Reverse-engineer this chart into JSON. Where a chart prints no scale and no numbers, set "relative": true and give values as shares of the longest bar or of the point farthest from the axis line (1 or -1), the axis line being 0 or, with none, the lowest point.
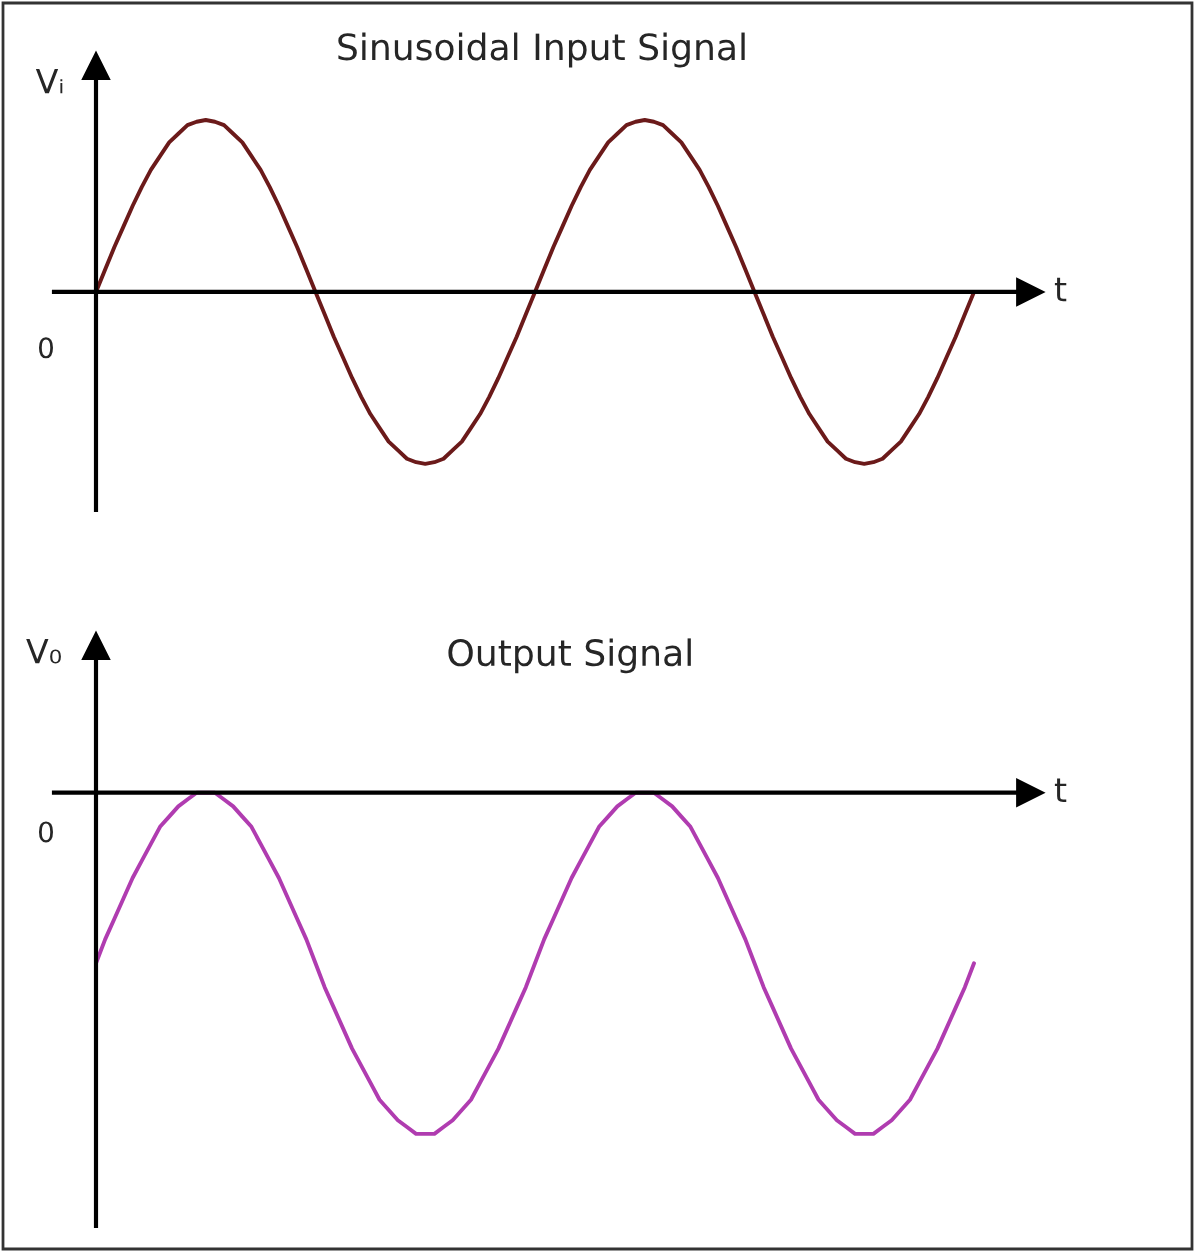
{
  "chart_data": [
    {
      "type": "line",
      "title": "Sinusoidal Input Signal",
      "xlabel": "t",
      "ylabel": "Vᵢ",
      "relative": true,
      "annotations": [
        "0"
      ],
      "categories": [
        null,
        null,
        null,
        null,
        null,
        null,
        null,
        null,
        null,
        null,
        null,
        null,
        null,
        null,
        null,
        null,
        null,
        null,
        null,
        null,
        null,
        null,
        null,
        null,
        null,
        null,
        null,
        null,
        null,
        null,
        null,
        null,
        null,
        null,
        null,
        null,
        null,
        null,
        null,
        null,
        null,
        null,
        null,
        null,
        null,
        null,
        null,
        null,
        null,
        null,
        null,
        null,
        null,
        null,
        null,
        null,
        null,
        null,
        null,
        null,
        null,
        null,
        null,
        null,
        null,
        null,
        null,
        null,
        null,
        null,
        null,
        null,
        null,
        null,
        null,
        null,
        null,
        null,
        null,
        null,
        null,
        null,
        null,
        null,
        null,
        null,
        null,
        null,
        null,
        null,
        null,
        null,
        null,
        null,
        null,
        null,
        null
      ],
      "series": [
        {
          "color": "#6b1a1a",
          "values": [
            0,
            0.13,
            0.26,
            0.38,
            0.5,
            0.61,
            0.71,
            0.79,
            0.87,
            0.92,
            0.97,
            0.99,
            1,
            0.99,
            0.97,
            0.92,
            0.87,
            0.79,
            0.71,
            0.61,
            0.5,
            0.38,
            0.26,
            0.13,
            0,
            -0.13,
            -0.26,
            -0.38,
            -0.5,
            -0.61,
            -0.71,
            -0.79,
            -0.87,
            -0.92,
            -0.97,
            -0.99,
            -1,
            -0.99,
            -0.97,
            -0.92,
            -0.87,
            -0.79,
            -0.71,
            -0.61,
            -0.5,
            -0.38,
            -0.26,
            -0.13,
            0,
            0.13,
            0.26,
            0.38,
            0.5,
            0.61,
            0.71,
            0.79,
            0.87,
            0.92,
            0.97,
            0.99,
            1,
            0.99,
            0.97,
            0.92,
            0.87,
            0.79,
            0.71,
            0.61,
            0.5,
            0.38,
            0.26,
            0.13,
            0,
            -0.13,
            -0.26,
            -0.38,
            -0.5,
            -0.61,
            -0.71,
            -0.79,
            -0.87,
            -0.92,
            -0.97,
            -0.99,
            -1,
            -0.99,
            -0.97,
            -0.92,
            -0.87,
            -0.79,
            -0.71,
            -0.61,
            -0.5,
            -0.38,
            -0.26,
            -0.13,
            0
          ]
        }
      ]
    },
    {
      "type": "line",
      "title": "Output Signal",
      "xlabel": "t",
      "ylabel": "V₀",
      "relative": true,
      "annotations": [
        "0"
      ],
      "categories": [
        null,
        null,
        null,
        null,
        null,
        null,
        null,
        null,
        null,
        null,
        null,
        null,
        null,
        null,
        null,
        null,
        null,
        null,
        null,
        null,
        null,
        null,
        null,
        null,
        null,
        null,
        null,
        null,
        null,
        null,
        null,
        null,
        null,
        null,
        null,
        null,
        null,
        null,
        null,
        null,
        null,
        null,
        null,
        null,
        null,
        null,
        null,
        null,
        null,
        null,
        null,
        null,
        null,
        null,
        null,
        null,
        null,
        null,
        null,
        null,
        null,
        null,
        null,
        null,
        null,
        null,
        null,
        null,
        null,
        null,
        null,
        null,
        null,
        null,
        null,
        null,
        null,
        null,
        null,
        null,
        null,
        null,
        null,
        null,
        null,
        null,
        null,
        null,
        null,
        null,
        null,
        null,
        null,
        null,
        null,
        null,
        null
      ],
      "series": [
        {
          "color": "#b03cb0",
          "values": [
            -0.5,
            -0.43,
            -0.37,
            -0.31,
            -0.25,
            -0.2,
            -0.15,
            -0.1,
            -0.07,
            -0.04,
            -0.02,
            0,
            0,
            0,
            -0.02,
            -0.04,
            -0.07,
            -0.1,
            -0.15,
            -0.2,
            -0.25,
            -0.31,
            -0.37,
            -0.43,
            -0.5,
            -0.57,
            -0.63,
            -0.69,
            -0.75,
            -0.8,
            -0.85,
            -0.9,
            -0.93,
            -0.96,
            -0.98,
            -1,
            -1,
            -1,
            -0.98,
            -0.96,
            -0.93,
            -0.9,
            -0.85,
            -0.8,
            -0.75,
            -0.69,
            -0.63,
            -0.57,
            -0.5,
            -0.43,
            -0.37,
            -0.31,
            -0.25,
            -0.2,
            -0.15,
            -0.1,
            -0.07,
            -0.04,
            -0.02,
            0,
            0,
            0,
            -0.02,
            -0.04,
            -0.07,
            -0.1,
            -0.15,
            -0.2,
            -0.25,
            -0.31,
            -0.37,
            -0.43,
            -0.5,
            -0.57,
            -0.63,
            -0.69,
            -0.75,
            -0.8,
            -0.85,
            -0.9,
            -0.93,
            -0.96,
            -0.98,
            -1,
            -1,
            -1,
            -0.98,
            -0.96,
            -0.93,
            -0.9,
            -0.85,
            -0.8,
            -0.75,
            -0.69,
            -0.63,
            -0.57,
            -0.5
          ]
        }
      ]
    }
  ]
}
